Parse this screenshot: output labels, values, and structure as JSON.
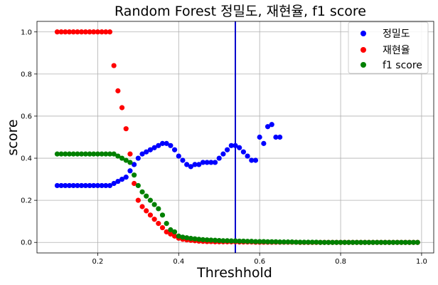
{
  "chart_data": {
    "type": "scatter",
    "title": "Random Forest 정밀도, 재현율, f1 score",
    "xlabel": "Threshhold",
    "ylabel": "score",
    "xlim": [
      0.05,
      1.03
    ],
    "ylim": [
      -0.05,
      1.05
    ],
    "x_ticks": [
      "0.2",
      "0.4",
      "0.6",
      "0.8",
      "1.0"
    ],
    "y_ticks": [
      "0.0",
      "0.2",
      "0.4",
      "0.6",
      "0.8",
      "1.0"
    ],
    "grid": true,
    "legend_position": "top-right",
    "vertical_line": {
      "x": 0.54,
      "color": "#0000cc"
    },
    "series": [
      {
        "name": "정밀도",
        "color": "#0000ff",
        "x": [
          0.1,
          0.11,
          0.12,
          0.13,
          0.14,
          0.15,
          0.16,
          0.17,
          0.18,
          0.19,
          0.2,
          0.21,
          0.22,
          0.23,
          0.24,
          0.25,
          0.26,
          0.27,
          0.28,
          0.29,
          0.3,
          0.31,
          0.32,
          0.33,
          0.34,
          0.35,
          0.36,
          0.37,
          0.38,
          0.39,
          0.4,
          0.41,
          0.42,
          0.43,
          0.44,
          0.45,
          0.46,
          0.47,
          0.48,
          0.49,
          0.5,
          0.51,
          0.52,
          0.53,
          0.54,
          0.55,
          0.56,
          0.57,
          0.58,
          0.59,
          0.6,
          0.61,
          0.62,
          0.63,
          0.64,
          0.65
        ],
        "values": [
          0.27,
          0.27,
          0.27,
          0.27,
          0.27,
          0.27,
          0.27,
          0.27,
          0.27,
          0.27,
          0.27,
          0.27,
          0.27,
          0.27,
          0.28,
          0.29,
          0.3,
          0.31,
          0.34,
          0.37,
          0.4,
          0.42,
          0.43,
          0.44,
          0.45,
          0.46,
          0.47,
          0.47,
          0.46,
          0.44,
          0.41,
          0.39,
          0.37,
          0.36,
          0.37,
          0.37,
          0.38,
          0.38,
          0.38,
          0.38,
          0.4,
          0.42,
          0.44,
          0.46,
          0.46,
          0.45,
          0.43,
          0.41,
          0.39,
          0.39,
          0.5,
          0.47,
          0.55,
          0.56,
          0.5,
          0.5
        ]
      },
      {
        "name": "재현율",
        "color": "#ff0000",
        "x": [
          0.1,
          0.11,
          0.12,
          0.13,
          0.14,
          0.15,
          0.16,
          0.17,
          0.18,
          0.19,
          0.2,
          0.21,
          0.22,
          0.23,
          0.24,
          0.25,
          0.26,
          0.27,
          0.28,
          0.29,
          0.3,
          0.31,
          0.32,
          0.33,
          0.34,
          0.35,
          0.36,
          0.37,
          0.38,
          0.39,
          0.4,
          0.41,
          0.42,
          0.43,
          0.44,
          0.45,
          0.46,
          0.47,
          0.48,
          0.49,
          0.5,
          0.51,
          0.52,
          0.53,
          0.54,
          0.55,
          0.56,
          0.57,
          0.58,
          0.59,
          0.6,
          0.61,
          0.62,
          0.63,
          0.64,
          0.65,
          0.66,
          0.67,
          0.68,
          0.69,
          0.7,
          0.71,
          0.72,
          0.73,
          0.74,
          0.75,
          0.76,
          0.77,
          0.78,
          0.79,
          0.8,
          0.81,
          0.82,
          0.83,
          0.84,
          0.85,
          0.86,
          0.87,
          0.88,
          0.89,
          0.9,
          0.91,
          0.92,
          0.93,
          0.94,
          0.95,
          0.96,
          0.97,
          0.98,
          0.99
        ],
        "values": [
          1.0,
          1.0,
          1.0,
          1.0,
          1.0,
          1.0,
          1.0,
          1.0,
          1.0,
          1.0,
          1.0,
          1.0,
          1.0,
          1.0,
          0.84,
          0.72,
          0.64,
          0.54,
          0.42,
          0.28,
          0.2,
          0.17,
          0.15,
          0.13,
          0.11,
          0.09,
          0.07,
          0.05,
          0.04,
          0.03,
          0.02,
          0.015,
          0.012,
          0.01,
          0.008,
          0.006,
          0.005,
          0.004,
          0.004,
          0.003,
          0.003,
          0.003,
          0.003,
          0.003,
          0.003,
          0.002,
          0.002,
          0.002,
          0.002,
          0.001,
          0.001,
          0.001,
          0.001,
          0.001,
          0.001,
          0.001,
          0.001,
          0.001,
          0.001,
          0.001,
          0,
          0,
          0,
          0,
          0,
          0,
          0,
          0,
          0,
          0,
          0,
          0,
          0,
          0,
          0,
          0,
          0,
          0,
          0,
          0,
          0,
          0,
          0,
          0,
          0,
          0,
          0,
          0,
          0,
          0
        ]
      },
      {
        "name": "f1 score",
        "color": "#008000",
        "x": [
          0.1,
          0.11,
          0.12,
          0.13,
          0.14,
          0.15,
          0.16,
          0.17,
          0.18,
          0.19,
          0.2,
          0.21,
          0.22,
          0.23,
          0.24,
          0.25,
          0.26,
          0.27,
          0.28,
          0.29,
          0.3,
          0.31,
          0.32,
          0.33,
          0.34,
          0.35,
          0.36,
          0.37,
          0.38,
          0.39,
          0.4,
          0.41,
          0.42,
          0.43,
          0.44,
          0.45,
          0.46,
          0.47,
          0.48,
          0.49,
          0.5,
          0.51,
          0.52,
          0.53,
          0.54,
          0.55,
          0.56,
          0.57,
          0.58,
          0.59,
          0.6,
          0.61,
          0.62,
          0.63,
          0.64,
          0.65,
          0.66,
          0.67,
          0.68,
          0.69,
          0.7,
          0.71,
          0.72,
          0.73,
          0.74,
          0.75,
          0.76,
          0.77,
          0.78,
          0.79,
          0.8,
          0.81,
          0.82,
          0.83,
          0.84,
          0.85,
          0.86,
          0.87,
          0.88,
          0.89,
          0.9,
          0.91,
          0.92,
          0.93,
          0.94,
          0.95,
          0.96,
          0.97,
          0.98,
          0.99
        ],
        "values": [
          0.42,
          0.42,
          0.42,
          0.42,
          0.42,
          0.42,
          0.42,
          0.42,
          0.42,
          0.42,
          0.42,
          0.42,
          0.42,
          0.42,
          0.42,
          0.41,
          0.4,
          0.39,
          0.38,
          0.32,
          0.27,
          0.24,
          0.22,
          0.2,
          0.18,
          0.16,
          0.13,
          0.09,
          0.06,
          0.05,
          0.03,
          0.025,
          0.022,
          0.019,
          0.017,
          0.015,
          0.013,
          0.012,
          0.011,
          0.01,
          0.009,
          0.008,
          0.008,
          0.007,
          0.007,
          0.006,
          0.006,
          0.005,
          0.005,
          0.004,
          0.004,
          0.004,
          0.003,
          0.003,
          0.003,
          0.002,
          0.002,
          0.002,
          0.002,
          0.001,
          0.001,
          0.001,
          0.001,
          0.001,
          0.001,
          0,
          0,
          0,
          0,
          0,
          0,
          0,
          0,
          0,
          0,
          0,
          0,
          0,
          0,
          0,
          0,
          0,
          0,
          0,
          0,
          0,
          0,
          0,
          0,
          0
        ]
      }
    ]
  },
  "colors": {
    "grid": "#b0b0b0",
    "axes": "#000000",
    "background": "#ffffff"
  }
}
